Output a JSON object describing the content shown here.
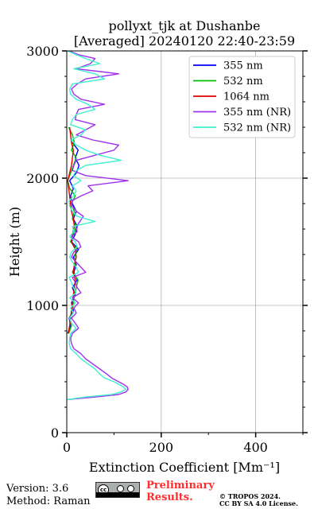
{
  "chart_data": {
    "type": "line",
    "title_line1": "pollyxt_tjk at Dushanbe",
    "title_line2": "[Averaged] 20240120 22:40-23:59",
    "xlabel": "Extinction Coefficient [Mm⁻¹]",
    "ylabel": "Height (m)",
    "xlim": [
      0,
      500
    ],
    "ylim": [
      0,
      3000
    ],
    "x_ticks": [
      0,
      200,
      400
    ],
    "y_ticks": [
      0,
      1000,
      2000,
      3000
    ],
    "grid": true,
    "legend_position": "top-right",
    "series": [
      {
        "name": "355 nm",
        "color": "#0000ff",
        "height": [
          780,
          840,
          900,
          960,
          1020,
          1080,
          1140,
          1200,
          1260,
          1320,
          1380,
          1440,
          1500,
          1560,
          1620,
          1680,
          1740,
          1800,
          1860,
          1920,
          1980,
          2040,
          2100,
          2160,
          2220,
          2280
        ],
        "values": [
          2,
          8,
          5,
          14,
          10,
          18,
          12,
          22,
          15,
          20,
          14,
          25,
          10,
          18,
          22,
          14,
          20,
          12,
          8,
          14,
          6,
          20,
          26,
          18,
          24,
          12
        ]
      },
      {
        "name": "532 nm",
        "color": "#00bb00",
        "height": [
          780,
          840,
          900,
          960,
          1020,
          1080,
          1140,
          1200,
          1260,
          1320,
          1380,
          1440,
          1500,
          1560,
          1620,
          1680,
          1740,
          1800,
          1860,
          1920,
          1980,
          2040,
          2100,
          2160,
          2220,
          2280,
          2340,
          2400
        ],
        "values": [
          4,
          10,
          6,
          12,
          14,
          16,
          20,
          24,
          12,
          18,
          16,
          22,
          8,
          14,
          20,
          12,
          16,
          10,
          18,
          6,
          2,
          8,
          14,
          20,
          10,
          16,
          12,
          4
        ]
      },
      {
        "name": "1064 nm",
        "color": "#dd0000",
        "height": [
          780,
          840,
          900,
          960,
          1020,
          1080,
          1140,
          1200,
          1260,
          1320,
          1380,
          1440,
          1500,
          1560,
          1620,
          1680,
          1740,
          1800,
          1860,
          1920,
          1980,
          2040,
          2100,
          2160,
          2220,
          2280,
          2340,
          2400
        ],
        "values": [
          3,
          6,
          8,
          10,
          12,
          14,
          16,
          18,
          14,
          16,
          20,
          18,
          10,
          12,
          16,
          14,
          10,
          8,
          6,
          4,
          2,
          6,
          10,
          12,
          14,
          10,
          8,
          6
        ]
      },
      {
        "name": "355 nm (NR)",
        "color": "#a030f0",
        "height": [
          260,
          280,
          300,
          320,
          340,
          360,
          380,
          400,
          430,
          460,
          500,
          540,
          580,
          620,
          660,
          700,
          740,
          780,
          820,
          860,
          900,
          940,
          980,
          1020,
          1060,
          1100,
          1140,
          1180,
          1220,
          1260,
          1300,
          1340,
          1380,
          1420,
          1460,
          1500,
          1540,
          1580,
          1620,
          1660,
          1700,
          1740,
          1780,
          1820,
          1860,
          1900,
          1940,
          1980,
          2020,
          2060,
          2100,
          2140,
          2180,
          2220,
          2260,
          2300,
          2340,
          2380,
          2420,
          2460,
          2500,
          2540,
          2580,
          2620,
          2660,
          2700,
          2740,
          2780,
          2820,
          2860,
          2900,
          2940,
          2970,
          3000
        ],
        "values": [
          0,
          60,
          110,
          125,
          130,
          128,
          120,
          110,
          95,
          85,
          70,
          55,
          40,
          30,
          15,
          10,
          8,
          12,
          25,
          18,
          10,
          20,
          15,
          25,
          12,
          30,
          22,
          18,
          12,
          40,
          30,
          20,
          10,
          15,
          30,
          25,
          10,
          22,
          20,
          28,
          35,
          20,
          12,
          10,
          30,
          55,
          45,
          130,
          40,
          12,
          15,
          20,
          60,
          100,
          110,
          55,
          20,
          40,
          60,
          18,
          20,
          25,
          80,
          30,
          15,
          10,
          22,
          40,
          110,
          20,
          50,
          60,
          25,
          5
        ]
      },
      {
        "name": "532 nm (NR)",
        "color": "#40f0d0",
        "height": [
          260,
          280,
          300,
          320,
          340,
          360,
          380,
          400,
          430,
          460,
          500,
          540,
          580,
          620,
          660,
          700,
          740,
          780,
          820,
          860,
          900,
          940,
          980,
          1020,
          1060,
          1100,
          1140,
          1180,
          1220,
          1260,
          1300,
          1340,
          1380,
          1420,
          1460,
          1500,
          1540,
          1580,
          1620,
          1660,
          1700,
          1740,
          1780,
          1820,
          1860,
          1900,
          1940,
          1980,
          2020,
          2060,
          2100,
          2140,
          2180,
          2220,
          2260,
          2300,
          2340,
          2380,
          2420,
          2460,
          2500,
          2540,
          2580,
          2620,
          2660,
          2700,
          2740,
          2780,
          2820,
          2860,
          2900,
          2940,
          2970,
          3000
        ],
        "values": [
          0,
          40,
          95,
          115,
          125,
          120,
          110,
          100,
          80,
          70,
          60,
          45,
          30,
          20,
          8,
          5,
          6,
          8,
          20,
          10,
          6,
          14,
          8,
          18,
          6,
          20,
          14,
          10,
          5,
          25,
          20,
          12,
          6,
          10,
          22,
          18,
          6,
          15,
          12,
          60,
          22,
          12,
          6,
          5,
          14,
          20,
          12,
          30,
          14,
          20,
          40,
          115,
          70,
          40,
          20,
          10,
          30,
          40,
          8,
          12,
          20,
          60,
          45,
          20,
          8,
          6,
          12,
          80,
          60,
          15,
          70,
          40,
          20,
          2
        ]
      }
    ]
  },
  "footer": {
    "version": "Version: 3.6",
    "method": "Method: Raman",
    "cc_label": "cc",
    "prelim_line1": "Preliminary",
    "prelim_line2": "Results.",
    "copyright_line1": "© TROPOS 2024.",
    "copyright_line2": "CC BY SA 4.0 License."
  }
}
